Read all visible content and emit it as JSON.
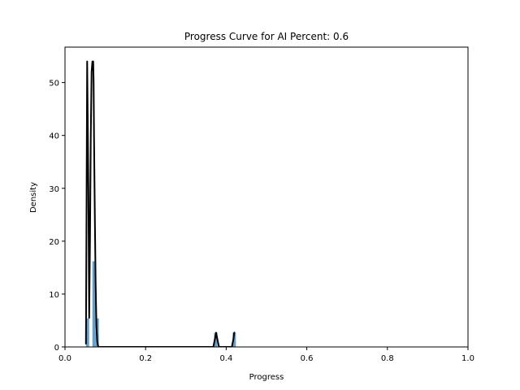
{
  "chart_data": {
    "type": "area",
    "title": "Progress Curve for AI Percent: 0.6",
    "xlabel": "Progress",
    "ylabel": "Density",
    "xlim": [
      0.0,
      1.0
    ],
    "ylim": [
      0,
      56.7
    ],
    "xticks": [
      0.0,
      0.2,
      0.4,
      0.6,
      0.8,
      1.0
    ],
    "xtick_labels": [
      "0.0",
      "0.2",
      "0.4",
      "0.6",
      "0.8",
      "1.0"
    ],
    "yticks": [
      0,
      10,
      20,
      30,
      40,
      50
    ],
    "ytick_labels": [
      "0",
      "10",
      "20",
      "30",
      "40",
      "50"
    ],
    "grid": false,
    "series": [
      {
        "kind": "histogram",
        "color": "#5b9bc8",
        "bars": [
          {
            "x0": 0.052,
            "x1": 0.06,
            "value": 5.4
          },
          {
            "x0": 0.068,
            "x1": 0.076,
            "value": 16.2
          },
          {
            "x0": 0.076,
            "x1": 0.084,
            "value": 5.4
          },
          {
            "x0": 0.37,
            "x1": 0.378,
            "value": 2.7
          },
          {
            "x0": 0.416,
            "x1": 0.424,
            "value": 2.7
          }
        ]
      },
      {
        "kind": "line",
        "color": "#000000",
        "x": [
          0.052,
          0.055,
          0.058,
          0.06,
          0.062,
          0.064,
          0.066,
          0.068,
          0.07,
          0.071,
          0.072,
          0.074,
          0.076,
          0.078,
          0.08,
          0.082,
          0.084,
          0.368,
          0.372,
          0.375,
          0.378,
          0.382,
          0.414,
          0.418,
          0.42,
          0.422
        ],
        "y": [
          0.5,
          54.0,
          30.0,
          5.5,
          20.0,
          40.0,
          52.0,
          54.0,
          54.0,
          50.0,
          40.0,
          25.0,
          12.0,
          4.0,
          1.0,
          0.2,
          0.0,
          0.0,
          1.5,
          2.7,
          1.5,
          0.0,
          0.0,
          1.5,
          2.7,
          2.7
        ]
      }
    ]
  }
}
